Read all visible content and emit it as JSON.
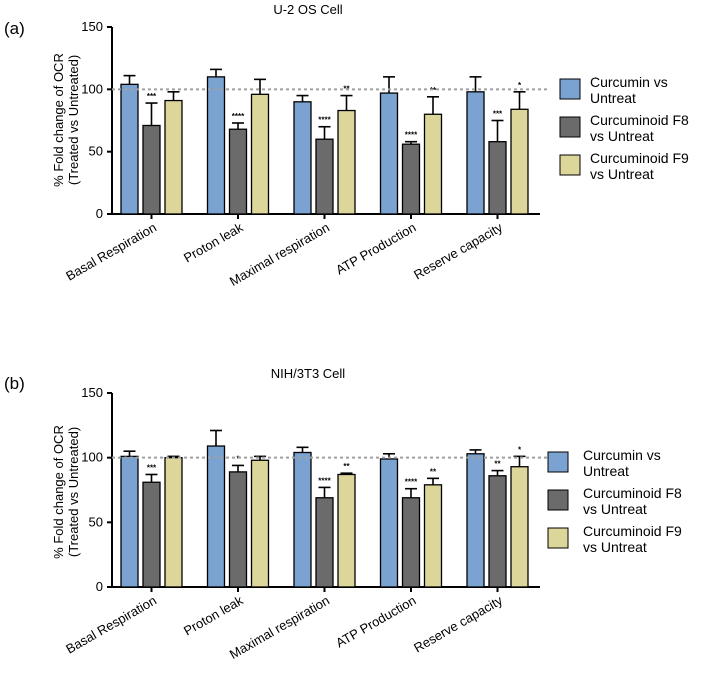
{
  "panels": [
    {
      "label": "(a)"
    },
    {
      "label": "(b)"
    }
  ],
  "legend": [
    {
      "line1": "Curcumin vs",
      "line2": "Untreat"
    },
    {
      "line1": "Curcuminoid F8",
      "line2": "vs Untreat"
    },
    {
      "line1": "Curcuminoid F9",
      "line2": "vs Untreat"
    }
  ],
  "colors": {
    "curcumin": "#7ba3d2",
    "f8": "#6b6b6b",
    "f9": "#dcd69a",
    "reference_line": "#a0a0a0"
  },
  "chart_data": [
    {
      "type": "bar",
      "title": "U-2 OS Cell",
      "ylabel_line1": "% Fold change of OCR",
      "ylabel_line2": "(Treated vs Untreated)",
      "ylim": [
        0,
        150
      ],
      "yticks": [
        "0",
        "50",
        "100",
        "150"
      ],
      "reference_line": 100,
      "categories": [
        "Basal Respiration",
        "Proton leak",
        "Maximal respiration",
        "ATP Production",
        "Reserve capacity"
      ],
      "series": [
        {
          "name": "Curcumin vs Untreat",
          "values": [
            104,
            110,
            90,
            97,
            98
          ],
          "errors": [
            7,
            6,
            5,
            13,
            12
          ],
          "significance": [
            "",
            "",
            "",
            "",
            ""
          ]
        },
        {
          "name": "Curcuminoid F8 vs Untreat",
          "values": [
            71,
            68,
            60,
            56,
            58
          ],
          "errors": [
            18,
            5,
            10,
            2,
            17
          ],
          "significance": [
            "***",
            "****",
            "****",
            "****",
            "***"
          ]
        },
        {
          "name": "Curcuminoid F9 vs Untreat",
          "values": [
            91,
            96,
            83,
            80,
            84
          ],
          "errors": [
            7,
            12,
            12,
            14,
            14
          ],
          "significance": [
            "",
            "",
            "**",
            "**",
            "*"
          ]
        }
      ]
    },
    {
      "type": "bar",
      "title": "NIH/3T3 Cell",
      "ylabel_line1": "% Fold change of OCR",
      "ylabel_line2": "(Treated vs Untreated)",
      "ylim": [
        0,
        150
      ],
      "yticks": [
        "0",
        "50",
        "100",
        "150"
      ],
      "reference_line": 100,
      "categories": [
        "Basal Respiration",
        "Proton leak",
        "Maximal respiration",
        "ATP Production",
        "Reserve capacity"
      ],
      "series": [
        {
          "name": "Curcumin vs Untreat",
          "values": [
            101,
            109,
            104,
            99,
            103
          ],
          "errors": [
            4,
            12,
            4,
            4,
            3
          ],
          "significance": [
            "",
            "",
            "",
            "",
            ""
          ]
        },
        {
          "name": "Curcuminoid F8 vs Untreat",
          "values": [
            81,
            89,
            69,
            69,
            86
          ],
          "errors": [
            6,
            5,
            8,
            7,
            4
          ],
          "significance": [
            "***",
            "*",
            "****",
            "****",
            "**"
          ]
        },
        {
          "name": "Curcuminoid F9 vs Untreat",
          "values": [
            100,
            98,
            87,
            79,
            93
          ],
          "errors": [
            1,
            3,
            1,
            5,
            8
          ],
          "significance": [
            "",
            "",
            "**",
            "**",
            "*"
          ]
        }
      ]
    }
  ]
}
